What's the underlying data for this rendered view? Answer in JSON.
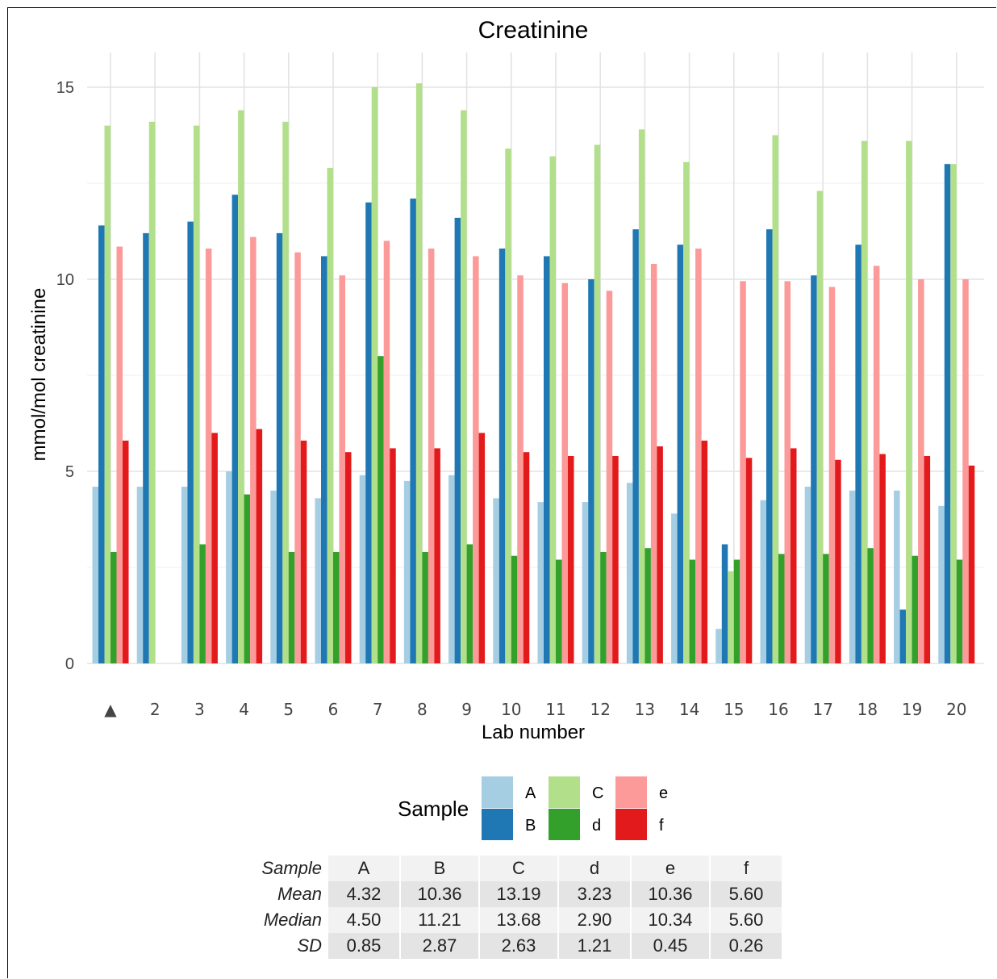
{
  "chart_data": {
    "type": "bar",
    "title": "Creatinine",
    "xlabel": "Lab number",
    "ylabel": "mmol/mol creatinine",
    "ylim": [
      0,
      15.4
    ],
    "yticks": [
      0,
      5,
      10,
      15
    ],
    "grid": true,
    "legend_position": "bottom",
    "legend_title": "Sample",
    "categories": [
      "▲",
      "2",
      "3",
      "4",
      "5",
      "6",
      "7",
      "8",
      "9",
      "10",
      "11",
      "12",
      "13",
      "14",
      "15",
      "16",
      "17",
      "18",
      "19",
      "20"
    ],
    "series": [
      {
        "name": "A",
        "color": "#a6cee3",
        "values": [
          4.6,
          4.6,
          4.6,
          5.0,
          4.5,
          4.3,
          4.9,
          4.75,
          4.9,
          4.3,
          4.2,
          4.2,
          4.7,
          3.9,
          0.9,
          4.25,
          4.6,
          4.5,
          4.5,
          4.1
        ]
      },
      {
        "name": "B",
        "color": "#1f78b4",
        "values": [
          11.4,
          11.2,
          11.5,
          12.2,
          11.2,
          10.6,
          12.0,
          12.1,
          11.6,
          10.8,
          10.6,
          10.0,
          11.3,
          10.9,
          3.1,
          11.3,
          10.1,
          10.9,
          1.4,
          13.0
        ]
      },
      {
        "name": "C",
        "color": "#b2df8a",
        "values": [
          14.0,
          14.1,
          14.0,
          14.4,
          14.1,
          12.9,
          15.0,
          15.1,
          14.4,
          13.4,
          13.2,
          13.5,
          13.9,
          13.05,
          2.4,
          13.75,
          12.3,
          13.6,
          13.6,
          13.0
        ]
      },
      {
        "name": "d",
        "color": "#33a02c",
        "values": [
          2.9,
          null,
          3.1,
          4.4,
          2.9,
          2.9,
          8.0,
          2.9,
          3.1,
          2.8,
          2.7,
          2.9,
          3.0,
          2.7,
          2.7,
          2.85,
          2.85,
          3.0,
          2.8,
          2.7
        ]
      },
      {
        "name": "e",
        "color": "#fb9a99",
        "values": [
          10.85,
          null,
          10.8,
          11.1,
          10.7,
          10.1,
          11.0,
          10.8,
          10.6,
          10.1,
          9.9,
          9.7,
          10.4,
          10.8,
          9.95,
          9.95,
          9.8,
          10.35,
          10.0,
          10.0
        ]
      },
      {
        "name": "f",
        "color": "#e31a1c",
        "values": [
          5.8,
          null,
          6.0,
          6.1,
          5.8,
          5.5,
          5.6,
          5.6,
          6.0,
          5.5,
          5.4,
          5.4,
          5.65,
          5.8,
          5.35,
          5.6,
          5.3,
          5.45,
          5.4,
          5.15
        ]
      }
    ]
  },
  "stats_table": {
    "header_label": "Sample",
    "columns": [
      "A",
      "B",
      "C",
      "d",
      "e",
      "f"
    ],
    "rows": [
      {
        "label": "Mean",
        "values": [
          "4.32",
          "10.36",
          "13.19",
          "3.23",
          "10.36",
          "5.60"
        ]
      },
      {
        "label": "Median",
        "values": [
          "4.50",
          "11.21",
          "13.68",
          "2.90",
          "10.34",
          "5.60"
        ]
      },
      {
        "label": "SD",
        "values": [
          "0.85",
          "2.87",
          "2.63",
          "1.21",
          "0.45",
          "0.26"
        ]
      }
    ]
  }
}
